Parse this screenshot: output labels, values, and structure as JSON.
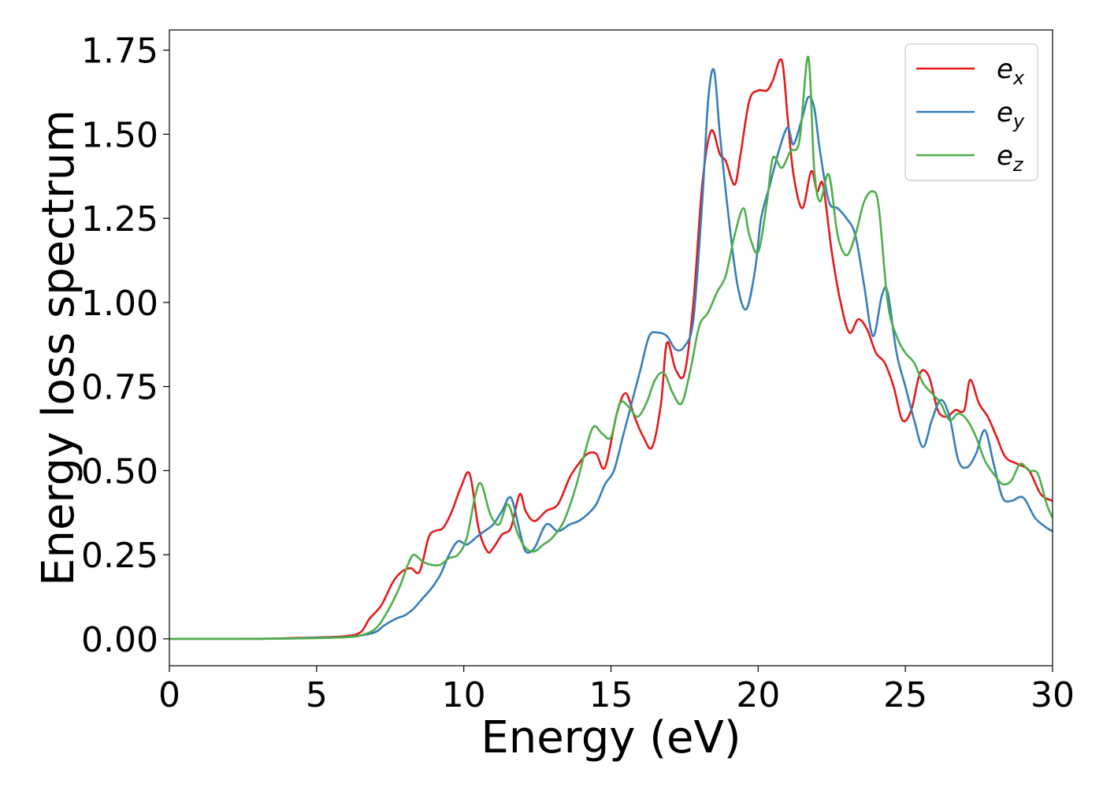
{
  "chart_data": {
    "type": "line",
    "title": "",
    "xlabel": "Energy (eV)",
    "ylabel": "Energy loss spectrum",
    "xlim": [
      0,
      30
    ],
    "ylim": [
      -0.08,
      1.81
    ],
    "xticks": [
      0,
      5,
      10,
      15,
      20,
      25,
      30
    ],
    "xtick_labels": [
      "0",
      "5",
      "10",
      "15",
      "20",
      "25",
      "30"
    ],
    "yticks": [
      0.0,
      0.25,
      0.5,
      0.75,
      1.0,
      1.25,
      1.5,
      1.75
    ],
    "ytick_labels": [
      "0.00",
      "0.25",
      "0.50",
      "0.75",
      "1.00",
      "1.25",
      "1.50",
      "1.75"
    ],
    "grid": false,
    "legend_position": "top-right",
    "series": [
      {
        "name": "e_x",
        "label_main": "e",
        "label_sub": "x",
        "color": "#e41a1c",
        "x": [
          0,
          1,
          2,
          3,
          4,
          5,
          6,
          6.5,
          6.8,
          7.2,
          7.6,
          7.9,
          8.2,
          8.5,
          8.8,
          9.0,
          9.3,
          9.6,
          9.9,
          10.2,
          10.5,
          10.8,
          11.0,
          11.3,
          11.6,
          11.9,
          12.1,
          12.4,
          12.8,
          13.2,
          13.6,
          13.9,
          14.2,
          14.5,
          14.8,
          15.2,
          15.5,
          15.8,
          16.1,
          16.4,
          16.7,
          16.9,
          17.2,
          17.5,
          17.8,
          18.1,
          18.4,
          18.7,
          18.9,
          19.2,
          19.4,
          19.7,
          20.0,
          20.3,
          20.5,
          20.8,
          21.0,
          21.2,
          21.5,
          21.8,
          22.0,
          22.2,
          22.5,
          22.8,
          23.1,
          23.4,
          23.7,
          24.0,
          24.3,
          24.6,
          24.9,
          25.2,
          25.5,
          25.8,
          26.1,
          26.4,
          26.7,
          27.0,
          27.2,
          27.5,
          27.8,
          28.1,
          28.4,
          28.8,
          29.2,
          29.6,
          30.0
        ],
        "values": [
          0,
          0,
          0,
          0,
          0.002,
          0.004,
          0.008,
          0.02,
          0.06,
          0.1,
          0.17,
          0.2,
          0.21,
          0.2,
          0.3,
          0.32,
          0.33,
          0.38,
          0.45,
          0.49,
          0.33,
          0.26,
          0.27,
          0.31,
          0.33,
          0.43,
          0.38,
          0.35,
          0.38,
          0.4,
          0.48,
          0.52,
          0.55,
          0.55,
          0.51,
          0.67,
          0.73,
          0.66,
          0.6,
          0.57,
          0.7,
          0.88,
          0.8,
          0.79,
          1.0,
          1.35,
          1.51,
          1.44,
          1.42,
          1.35,
          1.44,
          1.6,
          1.63,
          1.63,
          1.66,
          1.72,
          1.55,
          1.38,
          1.28,
          1.39,
          1.33,
          1.35,
          1.15,
          1.0,
          0.91,
          0.95,
          0.92,
          0.85,
          0.82,
          0.75,
          0.65,
          0.68,
          0.79,
          0.78,
          0.68,
          0.66,
          0.68,
          0.68,
          0.77,
          0.7,
          0.66,
          0.6,
          0.54,
          0.52,
          0.5,
          0.43,
          0.41
        ]
      },
      {
        "name": "e_y",
        "label_main": "e",
        "label_sub": "y",
        "color": "#377eb8",
        "x": [
          0,
          1,
          2,
          3,
          4,
          5,
          6,
          6.5,
          7.0,
          7.3,
          7.7,
          8.0,
          8.3,
          8.6,
          8.9,
          9.2,
          9.5,
          9.8,
          10.1,
          10.4,
          10.7,
          11.0,
          11.3,
          11.6,
          11.9,
          12.1,
          12.4,
          12.8,
          13.2,
          13.6,
          13.9,
          14.2,
          14.5,
          14.8,
          15.1,
          15.4,
          15.7,
          16.0,
          16.3,
          16.6,
          16.9,
          17.2,
          17.5,
          17.8,
          18.1,
          18.3,
          18.5,
          18.7,
          19.0,
          19.3,
          19.6,
          19.9,
          20.1,
          20.4,
          20.7,
          21.0,
          21.2,
          21.5,
          21.7,
          21.9,
          22.1,
          22.4,
          22.7,
          23.0,
          23.3,
          23.6,
          23.9,
          24.2,
          24.4,
          24.7,
          25.0,
          25.3,
          25.6,
          25.9,
          26.2,
          26.5,
          26.8,
          27.1,
          27.4,
          27.7,
          28.0,
          28.3,
          28.6,
          29.0,
          29.4,
          29.8,
          30.0
        ],
        "values": [
          0,
          0,
          0,
          0,
          0.001,
          0.003,
          0.005,
          0.01,
          0.02,
          0.04,
          0.06,
          0.07,
          0.09,
          0.12,
          0.15,
          0.19,
          0.25,
          0.29,
          0.28,
          0.3,
          0.32,
          0.34,
          0.38,
          0.42,
          0.32,
          0.26,
          0.27,
          0.34,
          0.32,
          0.34,
          0.35,
          0.37,
          0.4,
          0.46,
          0.5,
          0.6,
          0.7,
          0.8,
          0.9,
          0.91,
          0.9,
          0.86,
          0.87,
          0.95,
          1.3,
          1.6,
          1.69,
          1.5,
          1.25,
          1.05,
          0.98,
          1.1,
          1.25,
          1.35,
          1.45,
          1.52,
          1.47,
          1.55,
          1.61,
          1.58,
          1.45,
          1.3,
          1.28,
          1.25,
          1.2,
          1.05,
          0.9,
          1.02,
          1.03,
          0.85,
          0.75,
          0.65,
          0.57,
          0.65,
          0.71,
          0.66,
          0.53,
          0.51,
          0.55,
          0.62,
          0.52,
          0.42,
          0.41,
          0.42,
          0.36,
          0.33,
          0.32
        ]
      },
      {
        "name": "e_z",
        "label_main": "e",
        "label_sub": "z",
        "color": "#4daf4a",
        "x": [
          0,
          1,
          2,
          3,
          4,
          5,
          6,
          6.5,
          7.0,
          7.4,
          7.8,
          8.1,
          8.3,
          8.6,
          8.9,
          9.2,
          9.5,
          9.8,
          10.1,
          10.4,
          10.6,
          10.9,
          11.2,
          11.5,
          11.8,
          12.1,
          12.4,
          12.7,
          13.0,
          13.4,
          13.8,
          14.1,
          14.4,
          14.7,
          15.0,
          15.3,
          15.6,
          15.9,
          16.2,
          16.5,
          16.8,
          17.1,
          17.4,
          17.7,
          18.0,
          18.3,
          18.6,
          18.9,
          19.2,
          19.5,
          19.7,
          20.0,
          20.3,
          20.5,
          20.8,
          21.1,
          21.4,
          21.7,
          21.9,
          22.1,
          22.4,
          22.7,
          23.0,
          23.3,
          23.6,
          23.9,
          24.1,
          24.4,
          24.7,
          25.0,
          25.3,
          25.6,
          25.9,
          26.2,
          26.5,
          26.8,
          27.1,
          27.4,
          27.7,
          28.0,
          28.3,
          28.6,
          28.9,
          29.2,
          29.5,
          29.8,
          30.0
        ],
        "values": [
          0,
          0,
          0,
          0,
          0.001,
          0.002,
          0.005,
          0.01,
          0.03,
          0.08,
          0.15,
          0.22,
          0.25,
          0.23,
          0.22,
          0.22,
          0.24,
          0.25,
          0.3,
          0.43,
          0.46,
          0.37,
          0.34,
          0.4,
          0.32,
          0.27,
          0.26,
          0.28,
          0.3,
          0.35,
          0.45,
          0.55,
          0.63,
          0.61,
          0.6,
          0.7,
          0.69,
          0.66,
          0.7,
          0.77,
          0.79,
          0.73,
          0.7,
          0.8,
          0.93,
          0.97,
          1.03,
          1.08,
          1.2,
          1.28,
          1.2,
          1.15,
          1.3,
          1.43,
          1.4,
          1.45,
          1.48,
          1.73,
          1.4,
          1.3,
          1.38,
          1.2,
          1.14,
          1.2,
          1.3,
          1.33,
          1.28,
          1.0,
          0.9,
          0.85,
          0.82,
          0.76,
          0.73,
          0.7,
          0.65,
          0.67,
          0.65,
          0.6,
          0.53,
          0.49,
          0.46,
          0.47,
          0.52,
          0.5,
          0.49,
          0.4,
          0.36
        ]
      }
    ]
  }
}
